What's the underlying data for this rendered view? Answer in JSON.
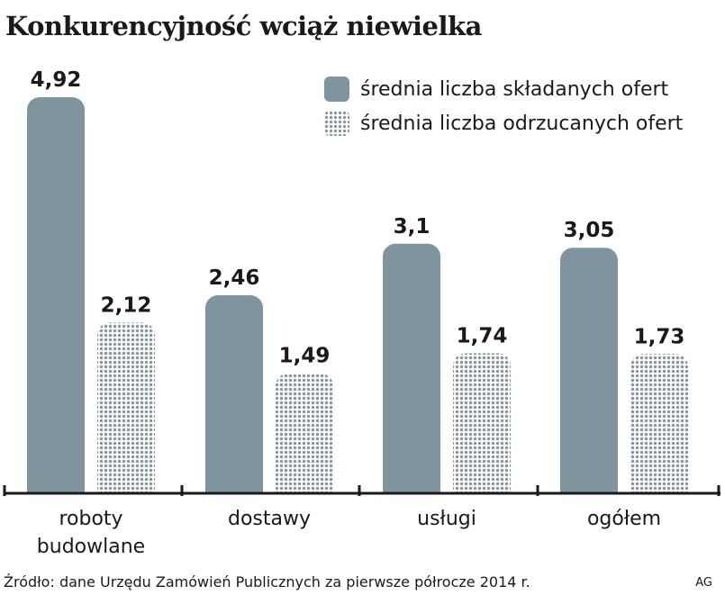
{
  "title": "Konkurencyjność wciąż niewielka",
  "source": "Źródło: dane Urzędu Zamówień Publicznych za pierwsze półrocze 2014 r.",
  "credit": "AG",
  "colors": {
    "submitted": "#7f959e",
    "rejected_dots": "#8a979f"
  },
  "chart_data": {
    "type": "bar",
    "categories": [
      [
        "roboty",
        "budowlane"
      ],
      [
        "dostawy"
      ],
      [
        "usługi"
      ],
      [
        "ogółem"
      ]
    ],
    "series": [
      {
        "name": "średnia liczba składanych ofert",
        "values": [
          4.92,
          2.46,
          3.1,
          3.05
        ],
        "labels": [
          "4,92",
          "2,46",
          "3,1",
          "3,05"
        ],
        "style": "solid"
      },
      {
        "name": "średnia liczba odrzucanych ofert",
        "values": [
          2.12,
          1.49,
          1.74,
          1.73
        ],
        "labels": [
          "2,12",
          "1,49",
          "1,74",
          "1,73"
        ],
        "style": "dotted"
      }
    ],
    "legend_position": "top-right",
    "grid": false,
    "ylim": [
      0,
      5.3
    ]
  }
}
